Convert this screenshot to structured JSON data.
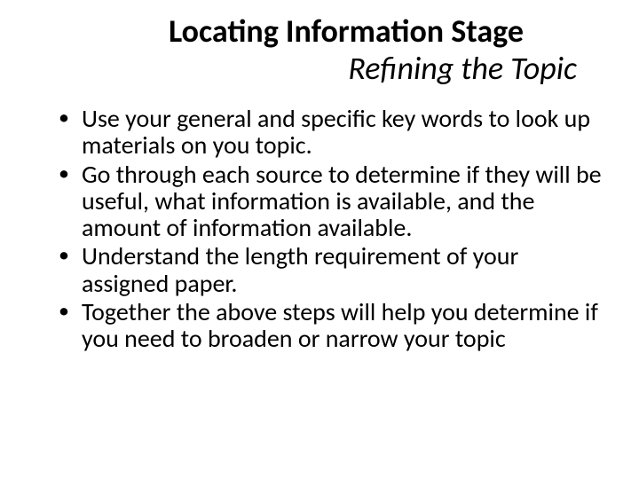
{
  "slide": {
    "title_line1": "Locating Information Stage",
    "title_line2": "Refining the Topic",
    "bullets": [
      "Use your general and specific key words to look up materials on you topic.",
      "Go through each source to determine if they will be useful, what information is available, and the amount of information available.",
      "Understand the length requirement of your assigned paper.",
      "Together the above steps will help  you determine if you need to broaden or narrow your topic"
    ],
    "colors": {
      "background": "#ffffff",
      "text": "#000000"
    },
    "typography": {
      "title_fontsize": 36,
      "title_line1_weight": "bold",
      "title_line2_style": "italic",
      "body_fontsize": 28,
      "font_family": "Calibri"
    }
  }
}
